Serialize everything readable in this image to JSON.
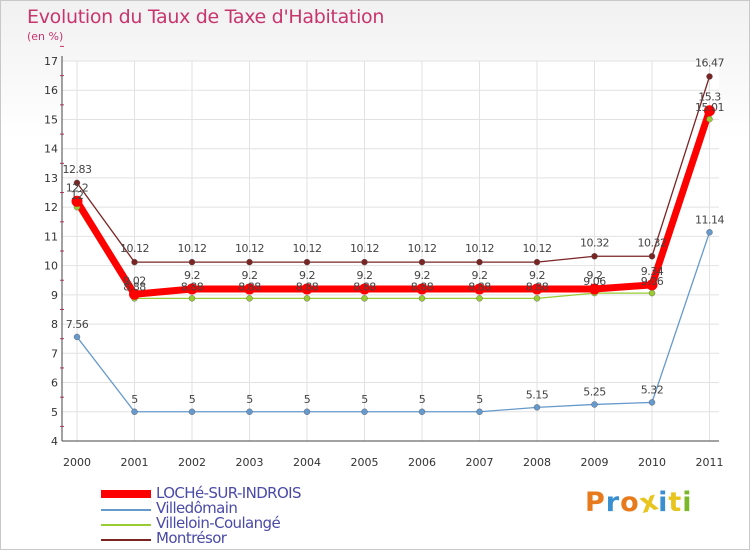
{
  "header": {
    "title": "Evolution du Taux de Taxe d'Habitation",
    "subtitle": "(en %)"
  },
  "logo": {
    "text": "Proxiti",
    "colors": [
      "#e87a1e",
      "#3a8fd0",
      "#e87a1e",
      "#e8c41e",
      "#3a8fd0",
      "#e8c41e",
      "#7ab82a"
    ]
  },
  "chart_data": {
    "type": "line",
    "x": [
      "2000",
      "2001",
      "2002",
      "2003",
      "2004",
      "2005",
      "2006",
      "2007",
      "2008",
      "2009",
      "2010",
      "2011"
    ],
    "ylim": [
      4,
      17
    ],
    "yticks": [
      "4",
      "5",
      "6",
      "7",
      "8",
      "9",
      "10",
      "11",
      "12",
      "13",
      "14",
      "15",
      "16",
      "17"
    ],
    "grid": true,
    "legend_position": "bottom-left",
    "series": [
      {
        "name": "LOCHé-SUR-INDROIS",
        "color": "#ff0000",
        "values": [
          12.2,
          9.02,
          9.2,
          9.2,
          9.2,
          9.2,
          9.2,
          9.2,
          9.2,
          9.2,
          9.34,
          15.3
        ],
        "labels": [
          "12.2",
          "9.02",
          "9.2",
          "9.2",
          "9.2",
          "9.2",
          "9.2",
          "9.2",
          "9.2",
          "9.2",
          "9.34",
          "15.3"
        ]
      },
      {
        "name": "Villedômain",
        "color": "#6699cc",
        "values": [
          7.56,
          5,
          5,
          5,
          5,
          5,
          5,
          5,
          5.15,
          5.25,
          5.32,
          11.14
        ],
        "labels": [
          "7.56",
          "5",
          "5",
          "5",
          "5",
          "5",
          "5",
          "5",
          "5.15",
          "5.25",
          "5.32",
          "11.14"
        ]
      },
      {
        "name": "Villeloin-Coulangé",
        "color": "#99cc33",
        "values": [
          12,
          8.88,
          8.88,
          8.88,
          8.88,
          8.88,
          8.88,
          8.88,
          8.88,
          9.06,
          9.06,
          15.01
        ],
        "labels": [
          "12",
          "8.88",
          "8.88",
          "8.88",
          "8.88",
          "8.88",
          "8.88",
          "8.88",
          "8.88",
          "9.06",
          "9.06",
          "15.01"
        ]
      },
      {
        "name": "Montrésor",
        "color": "#7a2424",
        "values": [
          12.83,
          10.12,
          10.12,
          10.12,
          10.12,
          10.12,
          10.12,
          10.12,
          10.12,
          10.32,
          10.32,
          16.47
        ],
        "labels": [
          "12.83",
          "10.12",
          "10.12",
          "10.12",
          "10.12",
          "10.12",
          "10.12",
          "10.12",
          "10.12",
          "10.32",
          "10.32",
          "16.47"
        ]
      }
    ]
  }
}
